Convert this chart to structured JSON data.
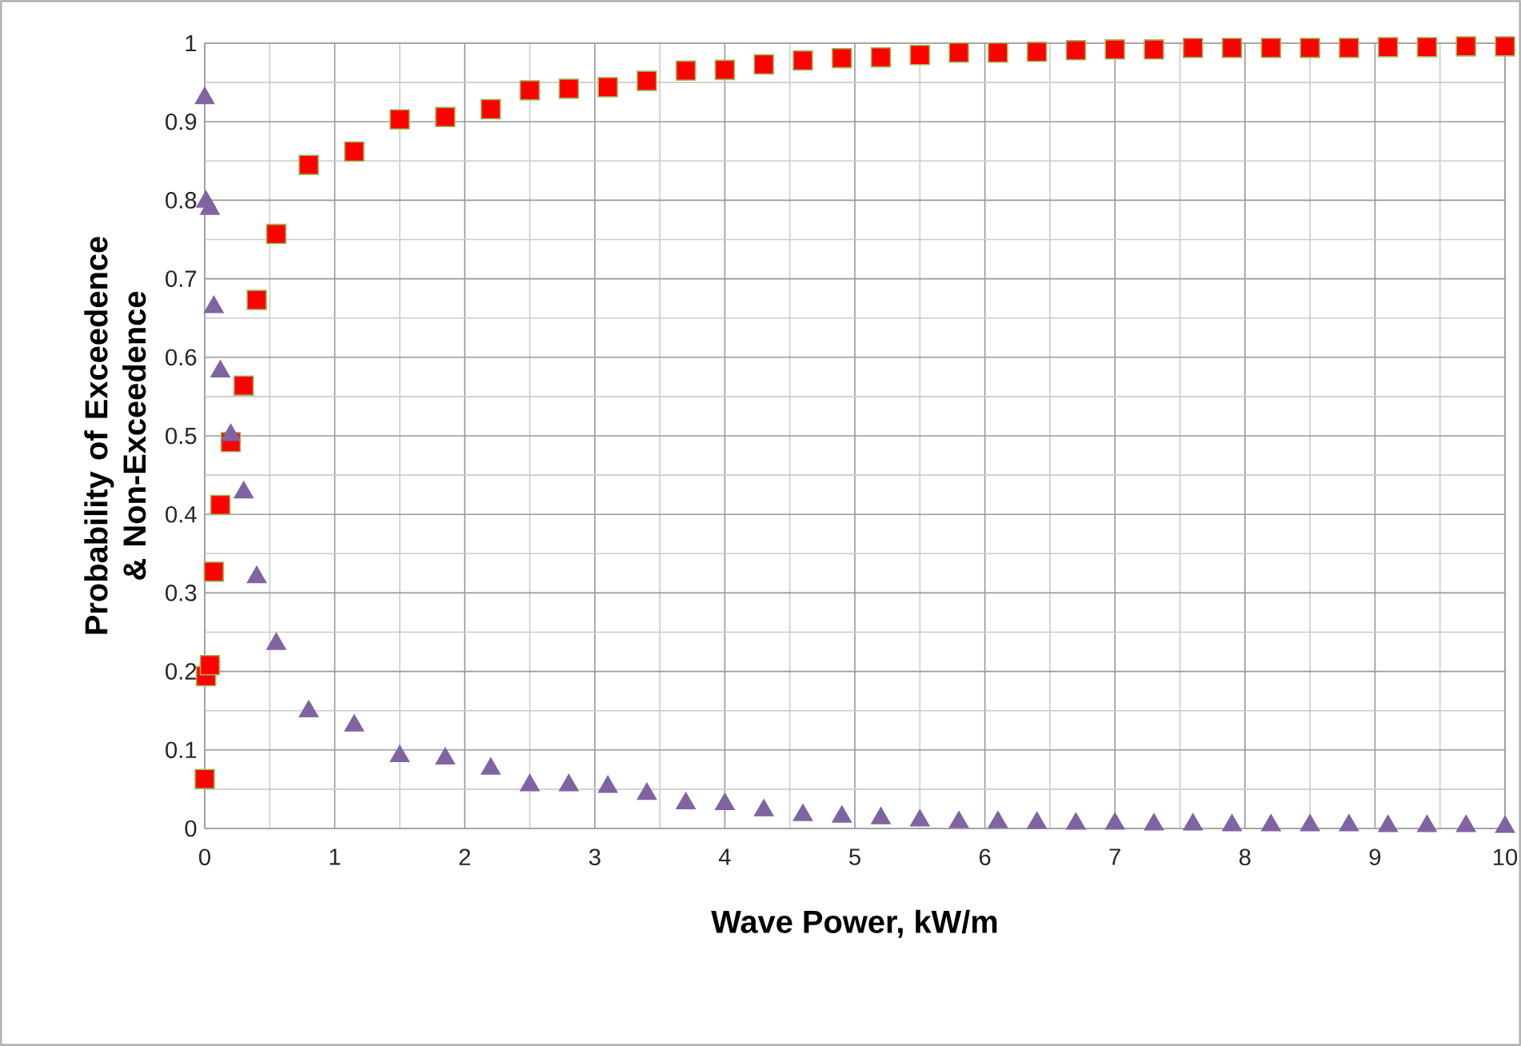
{
  "chart_data": {
    "type": "scatter",
    "xlabel": "Wave Power, kW/m",
    "ylabel": "Probability of Exceedence  & Non-Exceedence",
    "x": [
      0,
      0.01,
      0.04,
      0.07,
      0.12,
      0.2,
      0.3,
      0.4,
      0.55,
      0.8,
      1.15,
      1.5,
      1.85,
      2.2,
      2.5,
      2.8,
      3.1,
      3.4,
      3.7,
      4.0,
      4.3,
      4.6,
      4.9,
      5.2,
      5.5,
      5.8,
      6.1,
      6.4,
      6.7,
      7.0,
      7.3,
      7.6,
      7.9,
      8.2,
      8.5,
      8.8,
      9.1,
      9.4,
      9.7,
      10.0
    ],
    "series": [
      {
        "color": "#ff0000",
        "marker": "square",
        "values": [
          0.063,
          0.194,
          0.208,
          0.327,
          0.412,
          0.492,
          0.564,
          0.673,
          0.757,
          0.845,
          0.862,
          0.903,
          0.906,
          0.916,
          0.94,
          0.942,
          0.944,
          0.952,
          0.965,
          0.966,
          0.973,
          0.978,
          0.981,
          0.982,
          0.985,
          0.988,
          0.988,
          0.989,
          0.991,
          0.992,
          0.992,
          0.994,
          0.994,
          0.994,
          0.994,
          0.994,
          0.995,
          0.995,
          0.996,
          0.996
        ]
      },
      {
        "color": "#8064a2",
        "marker": "triangle",
        "values": [
          0.93,
          0.798,
          0.789,
          0.664,
          0.582,
          0.501,
          0.428,
          0.32,
          0.235,
          0.149,
          0.131,
          0.092,
          0.089,
          0.076,
          0.055,
          0.055,
          0.053,
          0.044,
          0.032,
          0.031,
          0.023,
          0.017,
          0.015,
          0.013,
          0.01,
          0.008,
          0.008,
          0.007,
          0.006,
          0.006,
          0.005,
          0.005,
          0.004,
          0.004,
          0.004,
          0.004,
          0.003,
          0.003,
          0.003,
          0.002
        ]
      }
    ],
    "xlim": [
      0,
      10
    ],
    "xticks": [
      0,
      1,
      2,
      3,
      4,
      5,
      6,
      7,
      8,
      9,
      10
    ],
    "ylim": [
      0,
      1
    ],
    "yticks": [
      0,
      0.1,
      0.2,
      0.3,
      0.4,
      0.5,
      0.6,
      0.7,
      0.8,
      0.9,
      1
    ],
    "grid": true
  }
}
